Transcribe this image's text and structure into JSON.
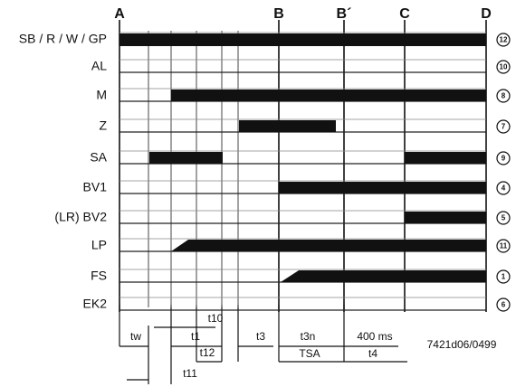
{
  "markers": [
    "A",
    "B",
    "B´",
    "C",
    "D"
  ],
  "rows": [
    {
      "label": "SB / R / W / GP",
      "number": "12"
    },
    {
      "label": "AL",
      "number": "10"
    },
    {
      "label": "M",
      "number": "8"
    },
    {
      "label": "Z",
      "number": "7"
    },
    {
      "label": "SA",
      "number": "9"
    },
    {
      "label": "BV1",
      "number": "4"
    },
    {
      "label": "(LR) BV2",
      "number": "5"
    },
    {
      "label": "LP",
      "number": "11"
    },
    {
      "label": "FS",
      "number": "1"
    },
    {
      "label": "EK2",
      "number": "6"
    }
  ],
  "intervals": [
    "tw",
    "t1",
    "t10",
    "t12",
    "t11",
    "t3",
    "t3n",
    "TSA",
    "400 ms",
    "t4"
  ],
  "code": "7421d06/0499"
}
